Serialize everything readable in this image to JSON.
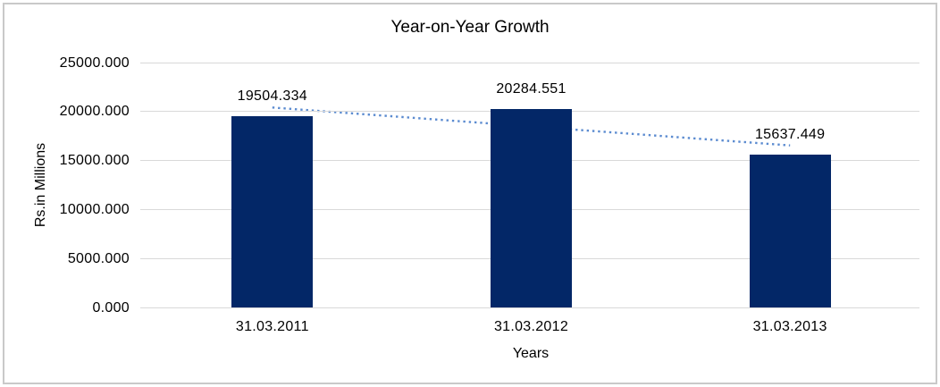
{
  "frame": {
    "border_color": "#C9C9C9",
    "background_color": "#FFFFFF"
  },
  "chart_data": {
    "type": "bar",
    "title": "Year-on-Year Growth",
    "xlabel": "Years",
    "ylabel": "Rs.in Millions",
    "categories": [
      "31.03.2011",
      "31.03.2012",
      "31.03.2013"
    ],
    "values": [
      19504.334,
      20284.551,
      15637.449
    ],
    "value_labels": [
      "19504.334",
      "20284.551",
      "15637.449"
    ],
    "ylim": [
      0,
      25000
    ],
    "ytick_interval": 5000,
    "yticks": [
      {
        "value": 25000,
        "label": "25000.000"
      },
      {
        "value": 20000,
        "label": "20000.000"
      },
      {
        "value": 15000,
        "label": "15000.000"
      },
      {
        "value": 10000,
        "label": "10000.000"
      },
      {
        "value": 5000,
        "label": "5000.000"
      },
      {
        "value": 0,
        "label": "0.000"
      }
    ],
    "grid": true,
    "legend_position": "none",
    "bar_color": "#032767",
    "text_color": "#000000",
    "gridline_color": "#D9D9D9",
    "trendline": {
      "type": "linear",
      "line_style": "dotted",
      "color": "#5B8BD0",
      "endpoint_values": [
        20408.887,
        16542.002
      ]
    }
  }
}
